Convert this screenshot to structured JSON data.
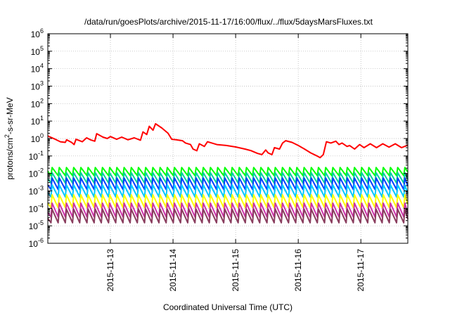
{
  "chart_data": {
    "type": "line",
    "title": "/data/run/goesPlots/archive/2015-11-17/16:00/flux/../flux/5daysMarsFluxes.txt",
    "xlabel": "Coordinated Universal Time (UTC)",
    "ylabel_parts": [
      "protons/cm",
      "2",
      "-s-sr-MeV"
    ],
    "x_range_days": [
      12.0,
      17.75
    ],
    "x_ticks": [
      {
        "day": 13,
        "label": "2015-11-13"
      },
      {
        "day": 14,
        "label": "2015-11-14"
      },
      {
        "day": 15,
        "label": "2015-11-15"
      },
      {
        "day": 16,
        "label": "2015-11-16"
      },
      {
        "day": 17,
        "label": "2015-11-17"
      }
    ],
    "y_scale": "log",
    "ylim": [
      1e-06,
      1000000.0
    ],
    "y_ticks": [
      {
        "base": "10",
        "exp": "6",
        "value": 1000000.0
      },
      {
        "base": "10",
        "exp": "5",
        "value": 100000.0
      },
      {
        "base": "10",
        "exp": "4",
        "value": 10000.0
      },
      {
        "base": "10",
        "exp": "3",
        "value": 1000.0
      },
      {
        "base": "10",
        "exp": "2",
        "value": 100.0
      },
      {
        "base": "10",
        "exp": "1",
        "value": 10.0
      },
      {
        "base": "10",
        "exp": "0",
        "value": 1.0
      },
      {
        "base": "10",
        "exp": "-1",
        "value": 0.1
      },
      {
        "base": "10",
        "exp": "-2",
        "value": 0.01
      },
      {
        "base": "10",
        "exp": "-3",
        "value": 0.001
      },
      {
        "base": "10",
        "exp": "-4",
        "value": 0.0001
      },
      {
        "base": "10",
        "exp": "-5",
        "value": 1e-05
      },
      {
        "base": "10",
        "exp": "-6",
        "value": 1e-06
      }
    ],
    "grid": true,
    "series": [
      {
        "color": "#ff0000",
        "points": [
          [
            12.0,
            1.4
          ],
          [
            12.12,
            0.9
          ],
          [
            12.2,
            0.65
          ],
          [
            12.28,
            0.6
          ],
          [
            12.3,
            0.85
          ],
          [
            12.38,
            0.6
          ],
          [
            12.42,
            0.45
          ],
          [
            12.45,
            0.9
          ],
          [
            12.55,
            0.65
          ],
          [
            12.62,
            1.1
          ],
          [
            12.68,
            0.85
          ],
          [
            12.75,
            0.7
          ],
          [
            12.78,
            1.9
          ],
          [
            12.88,
            1.2
          ],
          [
            12.95,
            1.0
          ],
          [
            13.0,
            1.3
          ],
          [
            13.1,
            0.9
          ],
          [
            13.18,
            1.2
          ],
          [
            13.28,
            0.85
          ],
          [
            13.38,
            1.1
          ],
          [
            13.48,
            0.8
          ],
          [
            13.52,
            2.4
          ],
          [
            13.58,
            1.7
          ],
          [
            13.62,
            5.0
          ],
          [
            13.68,
            3.0
          ],
          [
            13.72,
            7.0
          ],
          [
            13.82,
            4.0
          ],
          [
            13.92,
            2.0
          ],
          [
            13.98,
            0.9
          ],
          [
            14.05,
            0.85
          ],
          [
            14.15,
            0.75
          ],
          [
            14.2,
            0.55
          ],
          [
            14.28,
            0.45
          ],
          [
            14.32,
            0.25
          ],
          [
            14.38,
            0.2
          ],
          [
            14.42,
            0.5
          ],
          [
            14.5,
            0.35
          ],
          [
            14.55,
            0.65
          ],
          [
            14.62,
            0.55
          ],
          [
            14.7,
            0.45
          ],
          [
            14.85,
            0.4
          ],
          [
            15.0,
            0.33
          ],
          [
            15.15,
            0.25
          ],
          [
            15.25,
            0.2
          ],
          [
            15.35,
            0.14
          ],
          [
            15.42,
            0.12
          ],
          [
            15.48,
            0.22
          ],
          [
            15.52,
            0.15
          ],
          [
            15.58,
            0.12
          ],
          [
            15.62,
            0.3
          ],
          [
            15.7,
            0.25
          ],
          [
            15.75,
            0.55
          ],
          [
            15.8,
            0.75
          ],
          [
            15.9,
            0.6
          ],
          [
            16.0,
            0.4
          ],
          [
            16.1,
            0.25
          ],
          [
            16.2,
            0.15
          ],
          [
            16.3,
            0.1
          ],
          [
            16.35,
            0.08
          ],
          [
            16.4,
            0.12
          ],
          [
            16.45,
            0.65
          ],
          [
            16.52,
            0.55
          ],
          [
            16.6,
            0.7
          ],
          [
            16.65,
            0.45
          ],
          [
            16.7,
            0.55
          ],
          [
            16.78,
            0.35
          ],
          [
            16.82,
            0.4
          ],
          [
            16.9,
            0.25
          ],
          [
            16.98,
            0.45
          ],
          [
            17.05,
            0.3
          ],
          [
            17.15,
            0.5
          ],
          [
            17.25,
            0.3
          ],
          [
            17.35,
            0.5
          ],
          [
            17.45,
            0.32
          ],
          [
            17.55,
            0.5
          ],
          [
            17.65,
            0.3
          ],
          [
            17.75,
            0.42
          ]
        ]
      },
      {
        "color": "#00ff00",
        "pattern": {
          "start": 12.05,
          "period": 0.115,
          "peak": 0.022,
          "trough": 0.0075
        }
      },
      {
        "color": "#00d0a0",
        "pattern": {
          "start": 12.05,
          "period": 0.115,
          "peak": 0.011,
          "trough": 0.0028
        }
      },
      {
        "color": "#0040ff",
        "pattern": {
          "start": 12.05,
          "period": 0.115,
          "peak": 0.0055,
          "trough": 0.0012
        }
      },
      {
        "color": "#00c8ff",
        "pattern": {
          "start": 12.05,
          "period": 0.115,
          "peak": 0.0022,
          "trough": 0.00045
        }
      },
      {
        "color": "#ffff00",
        "pattern": {
          "start": 12.05,
          "period": 0.115,
          "peak": 0.0006,
          "trough": 0.00011
        }
      },
      {
        "color": "#cc33aa",
        "pattern": {
          "start": 12.05,
          "period": 0.115,
          "peak": 0.0002,
          "trough": 3.2e-05
        }
      },
      {
        "color": "#8a3d5e",
        "pattern": {
          "start": 12.05,
          "period": 0.115,
          "peak": 9e-05,
          "trough": 1.5e-05
        }
      }
    ]
  }
}
